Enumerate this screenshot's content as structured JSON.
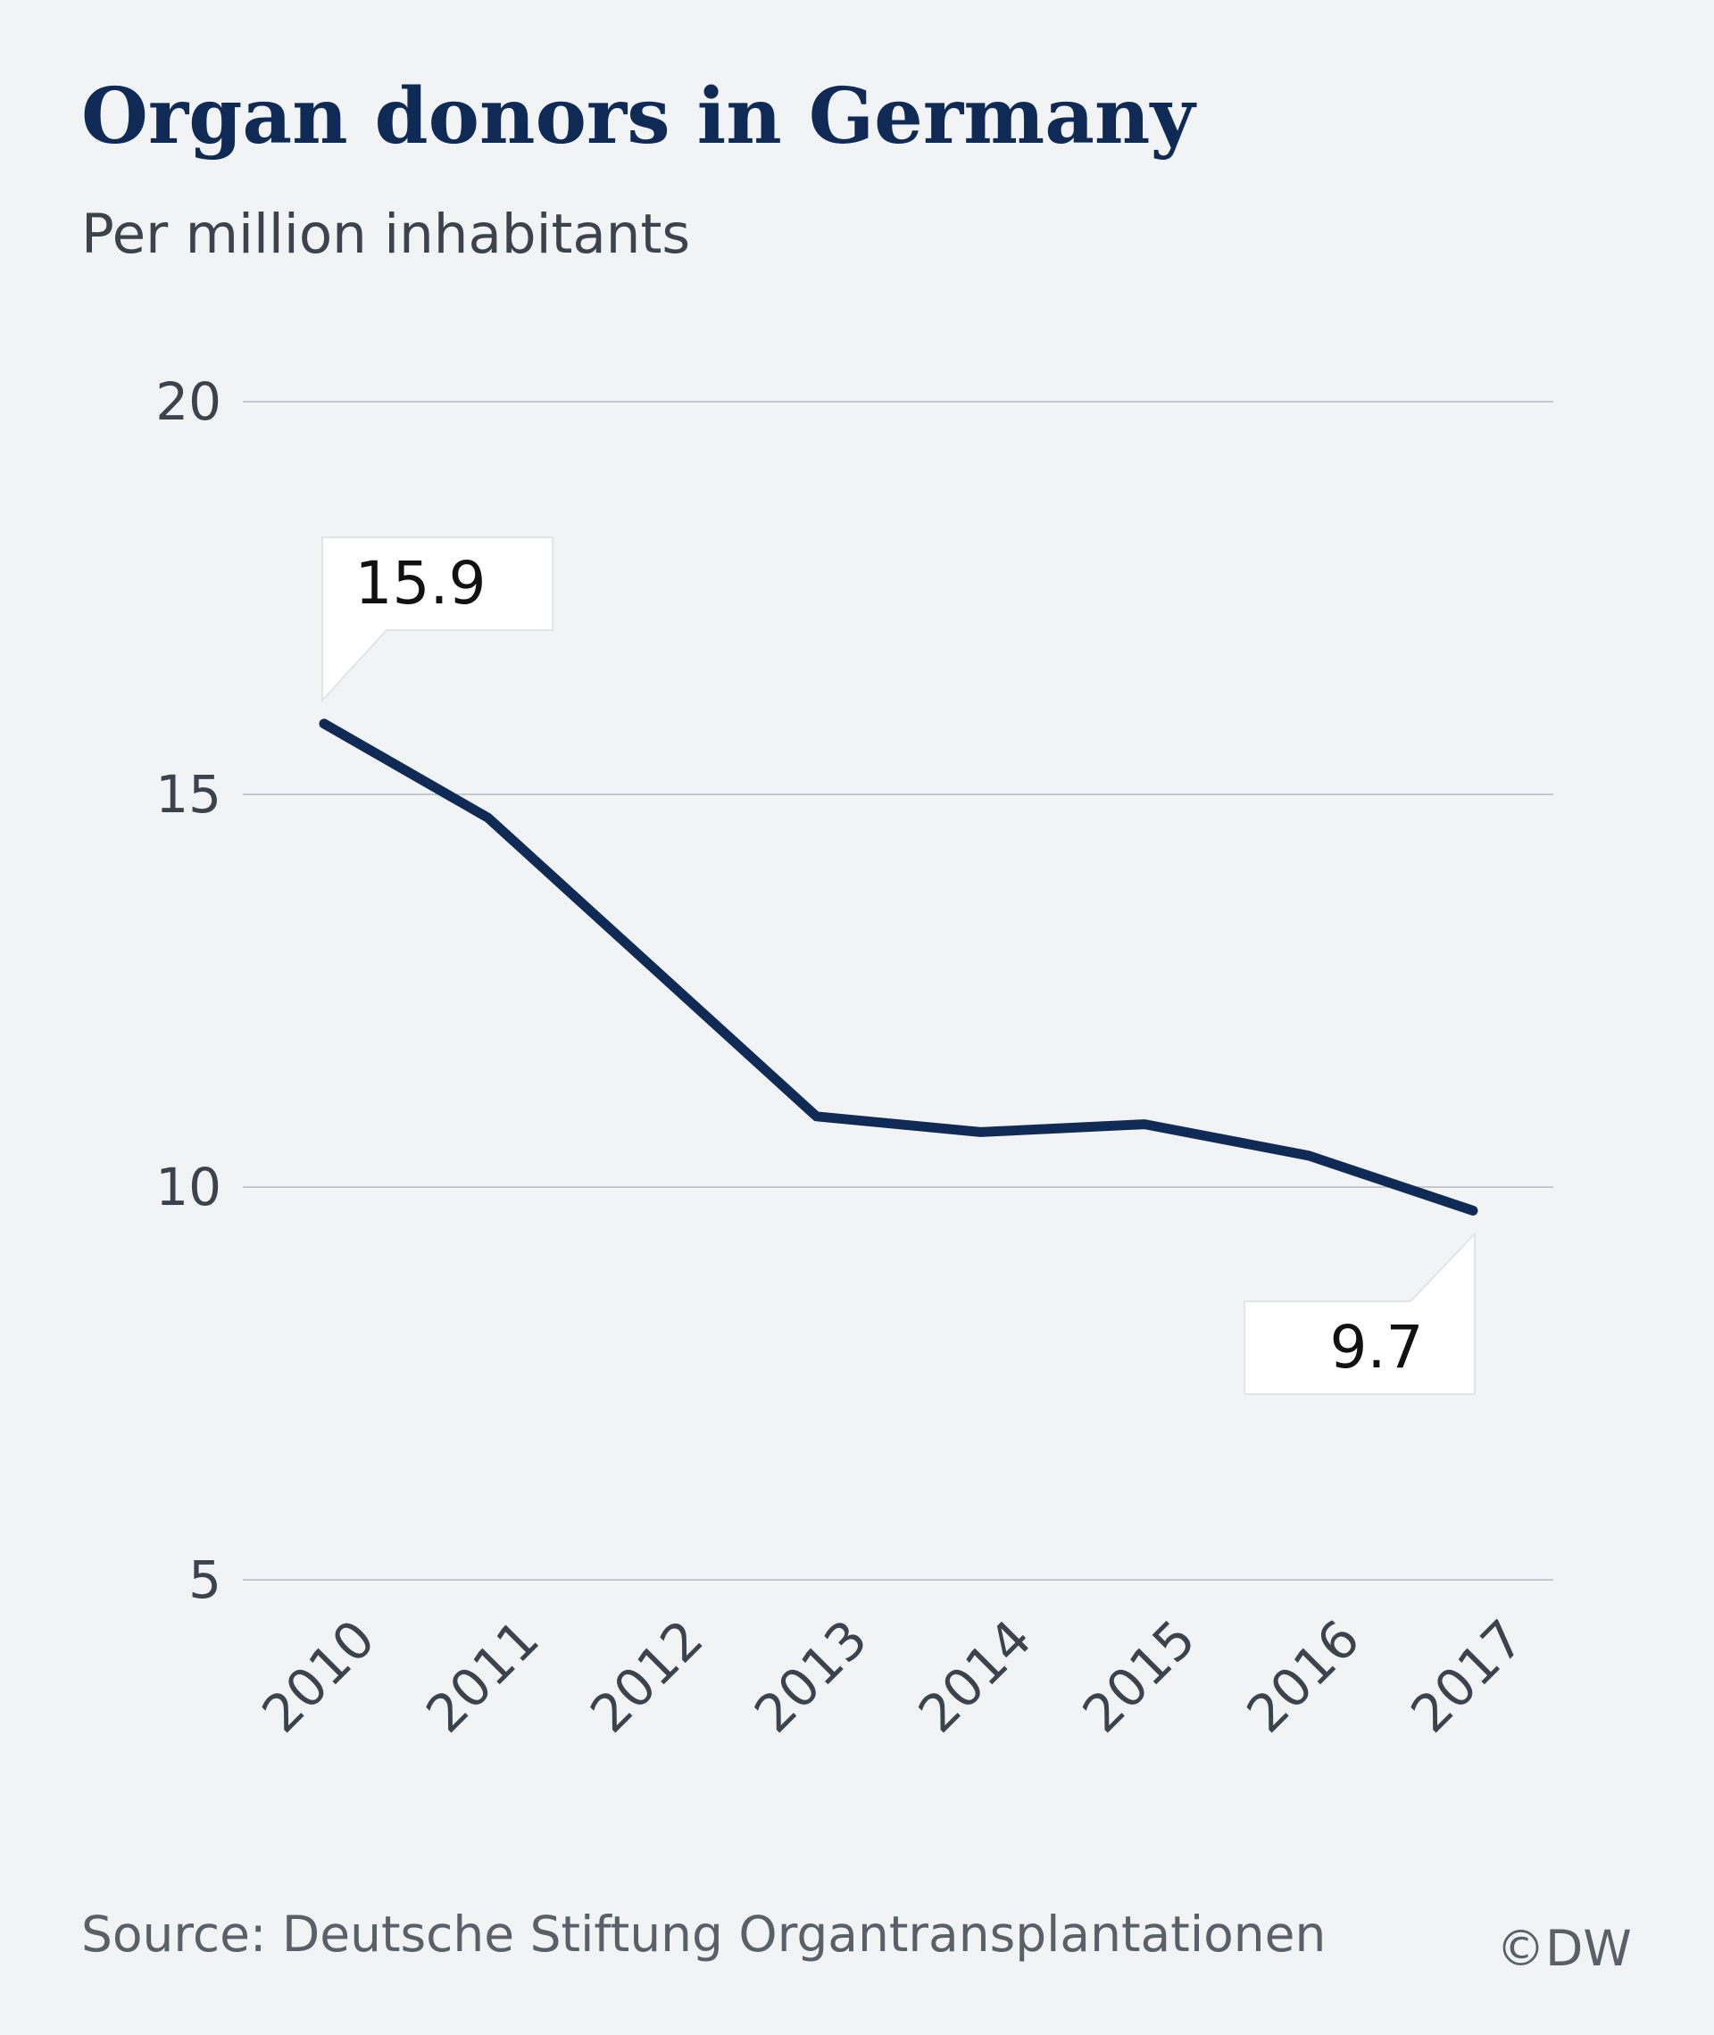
{
  "chart_data": {
    "type": "line",
    "title": "Organ donors in Germany",
    "subtitle": "Per million inhabitants",
    "x": [
      "2010",
      "2011",
      "2012",
      "2013",
      "2014",
      "2015",
      "2016",
      "2017"
    ],
    "series": [
      {
        "values": [
          15.9,
          14.7,
          12.8,
          10.9,
          10.7,
          10.8,
          10.4,
          9.7
        ],
        "color": "#0f2b55"
      }
    ],
    "ylim": [
      5,
      20
    ],
    "yticks": [
      "5",
      "10",
      "15",
      "20"
    ],
    "grid": true,
    "annotations": [
      {
        "label": "15.9",
        "category": "2010",
        "value": 15.9
      },
      {
        "label": "9.7",
        "category": "2017",
        "value": 9.7
      }
    ],
    "source": "Source: Deutsche Stiftung Organtransplantationen",
    "credit": "©DW"
  }
}
